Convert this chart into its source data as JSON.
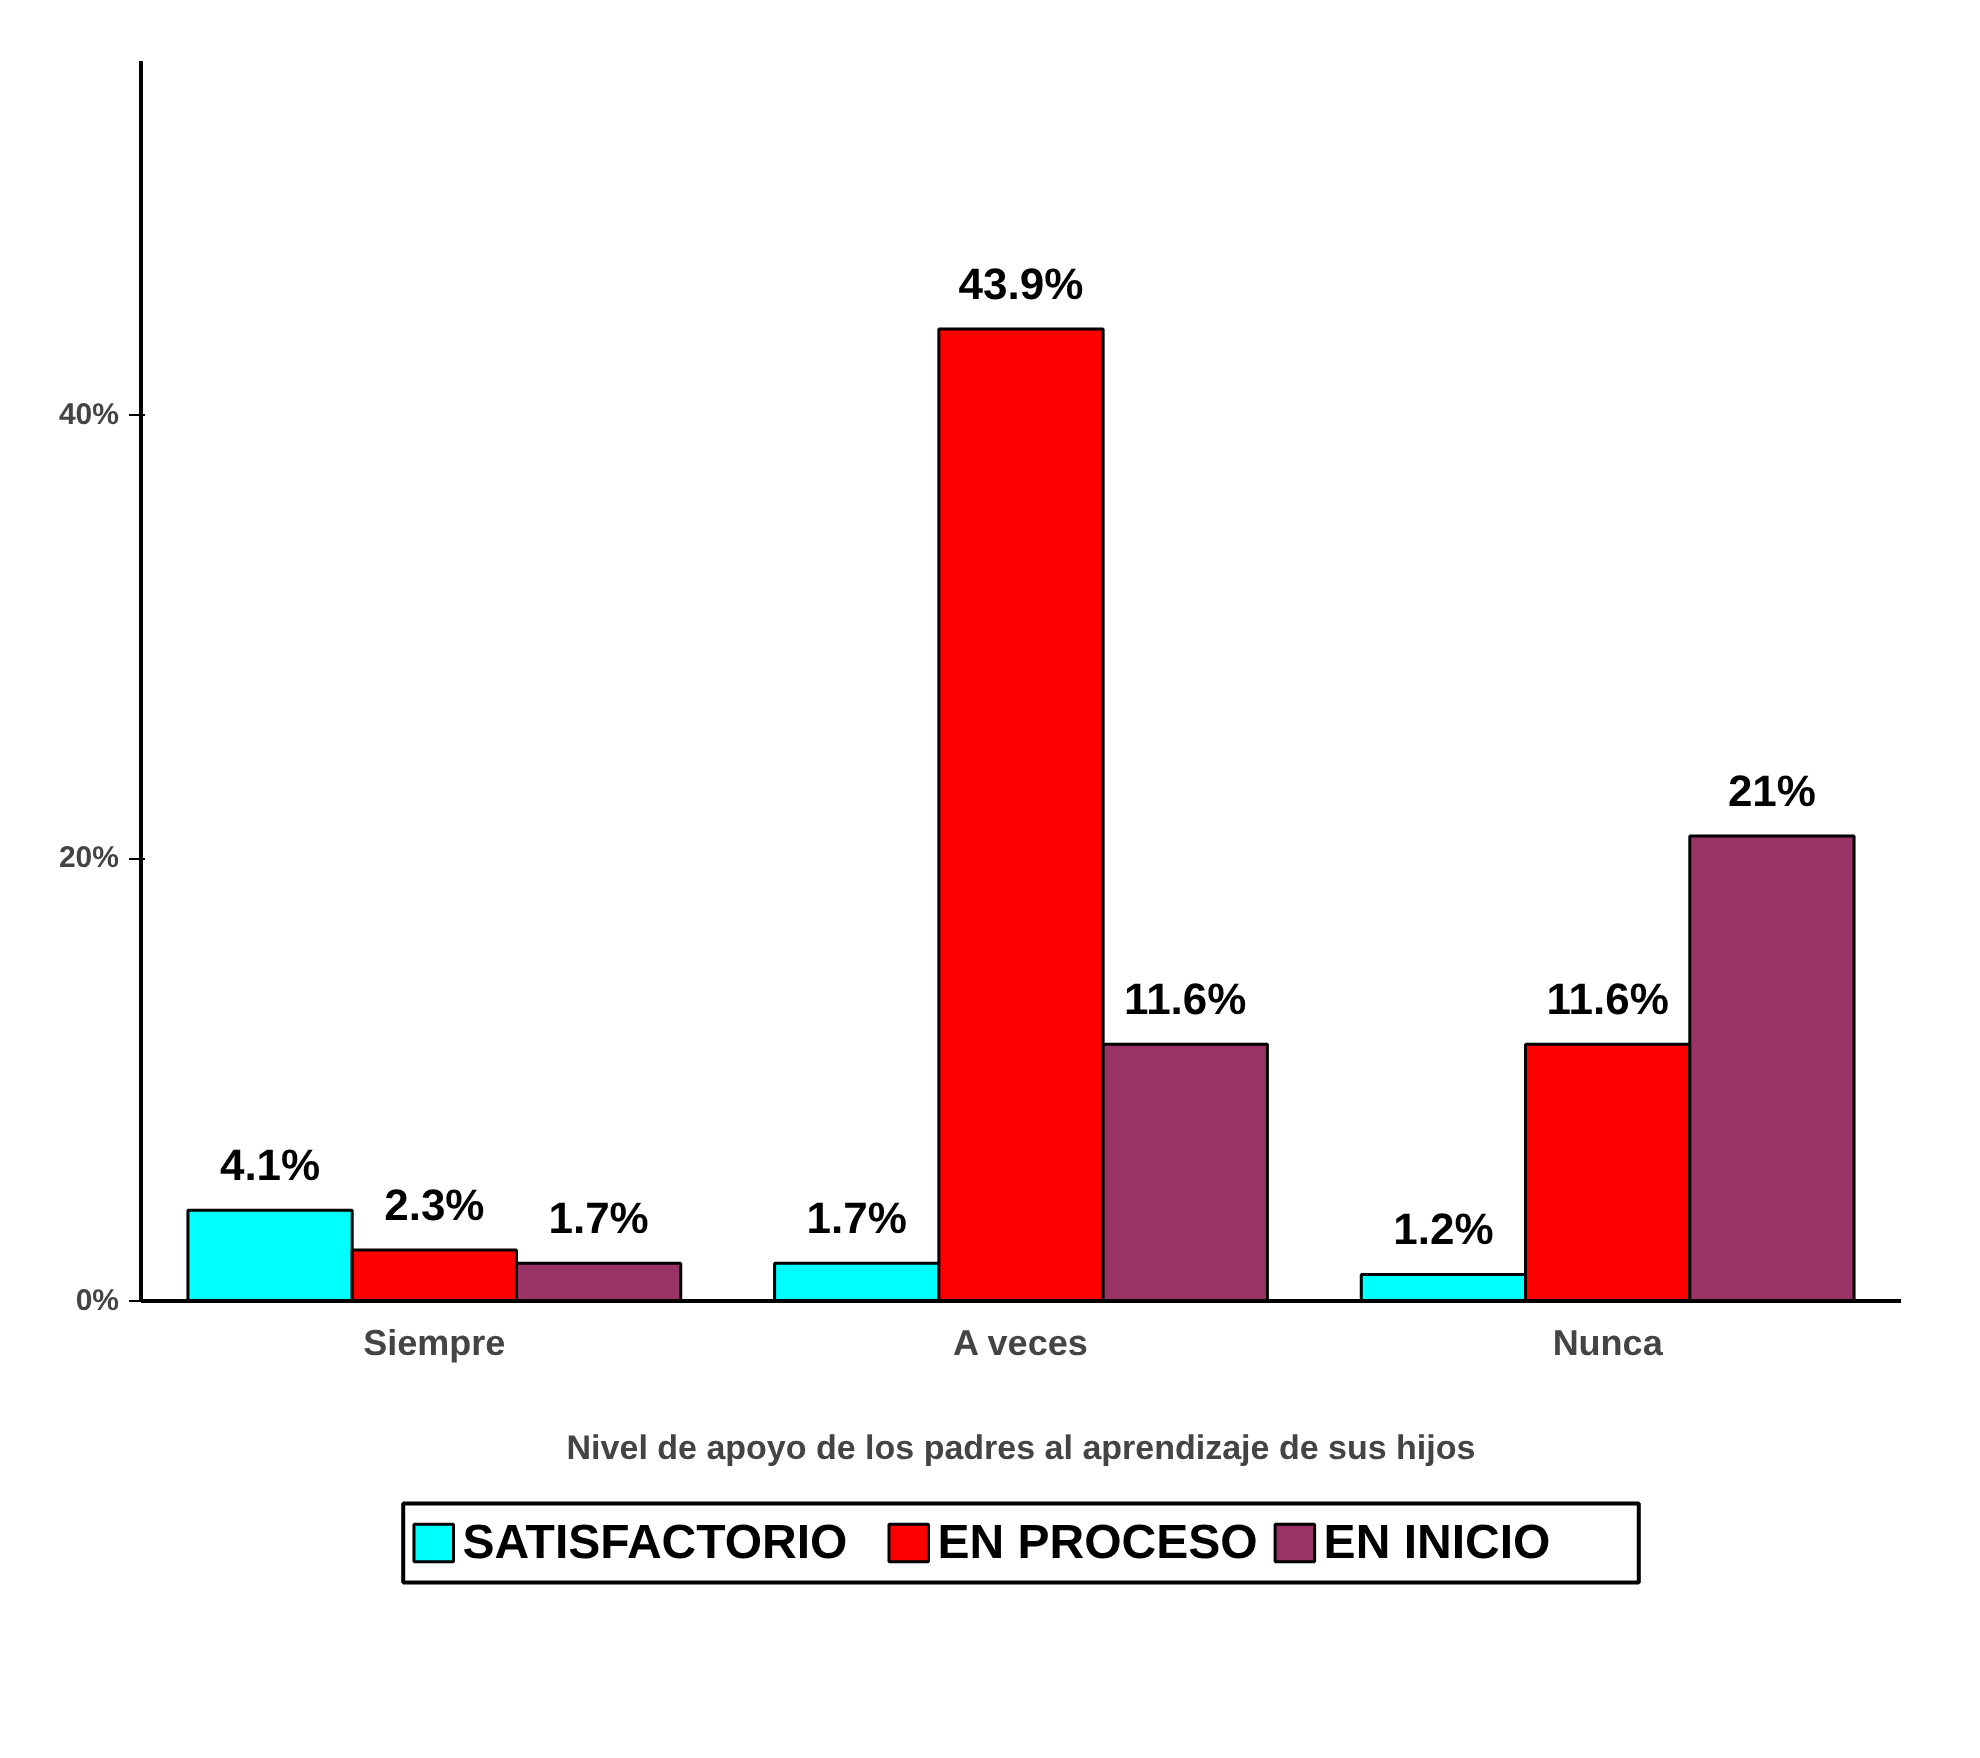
{
  "chart_data": {
    "type": "bar",
    "xlabel": "Nivel de apoyo de los padres al aprendizaje de sus hijos",
    "categories": [
      "Siempre",
      "A veces",
      "Nunca"
    ],
    "series": [
      {
        "name": "SATISFACTORIO",
        "color": "#00ffff",
        "values": [
          4.1,
          1.7,
          1.2
        ],
        "value_labels": [
          "4.1%",
          "1.7%",
          "1.2%"
        ]
      },
      {
        "name": "EN PROCESO",
        "color": "#ff0000",
        "values": [
          2.3,
          43.9,
          11.6
        ],
        "value_labels": [
          "2.3%",
          "43.9%",
          "11.6%"
        ]
      },
      {
        "name": "EN INICIO",
        "color": "#993366",
        "values": [
          1.7,
          11.6,
          21
        ],
        "value_labels": [
          "1.7%",
          "11.6%",
          "21%"
        ]
      }
    ],
    "ylim": [
      0,
      56
    ],
    "yticks": [
      {
        "value": 0,
        "label": "0%"
      },
      {
        "value": 20,
        "label": "20%"
      },
      {
        "value": 40,
        "label": "40%"
      }
    ],
    "grid": false,
    "legend": "bottom"
  }
}
